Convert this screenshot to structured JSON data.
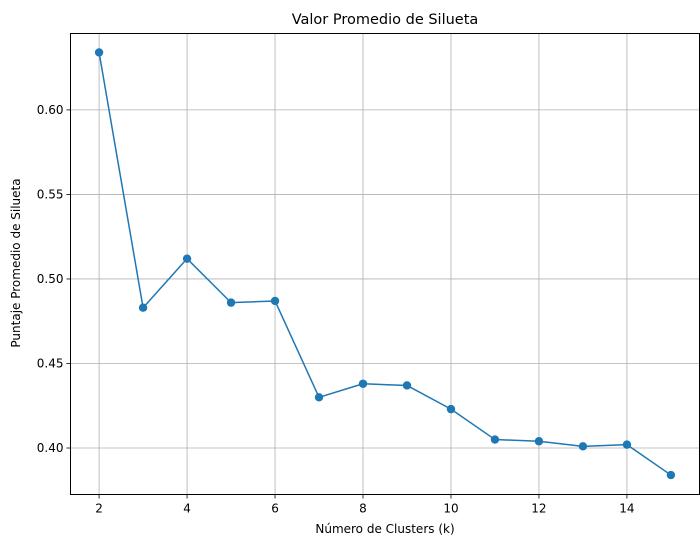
{
  "chart_data": {
    "type": "line",
    "title": "Valor Promedio de Silueta",
    "xlabel": "Número de Clusters (k)",
    "ylabel": "Puntaje Promedio de Silueta",
    "xlim": [
      1.35,
      15.65
    ],
    "ylim": [
      0.3725,
      0.6452
    ],
    "xticks": [
      2,
      4,
      6,
      8,
      10,
      12,
      14
    ],
    "xtick_labels": [
      "2",
      "4",
      "6",
      "8",
      "10",
      "12",
      "14"
    ],
    "yticks": [
      0.4,
      0.45,
      0.5,
      0.55,
      0.6
    ],
    "ytick_labels": [
      "0.40",
      "0.45",
      "0.50",
      "0.55",
      "0.60"
    ],
    "grid": true,
    "series": [
      {
        "color": "#1f77b4",
        "marker": "circle",
        "x": [
          2,
          3,
          4,
          5,
          6,
          7,
          8,
          9,
          10,
          11,
          12,
          13,
          14,
          15
        ],
        "y": [
          0.634,
          0.483,
          0.512,
          0.486,
          0.487,
          0.43,
          0.438,
          0.437,
          0.423,
          0.405,
          0.404,
          0.401,
          0.402,
          0.384
        ]
      }
    ]
  }
}
